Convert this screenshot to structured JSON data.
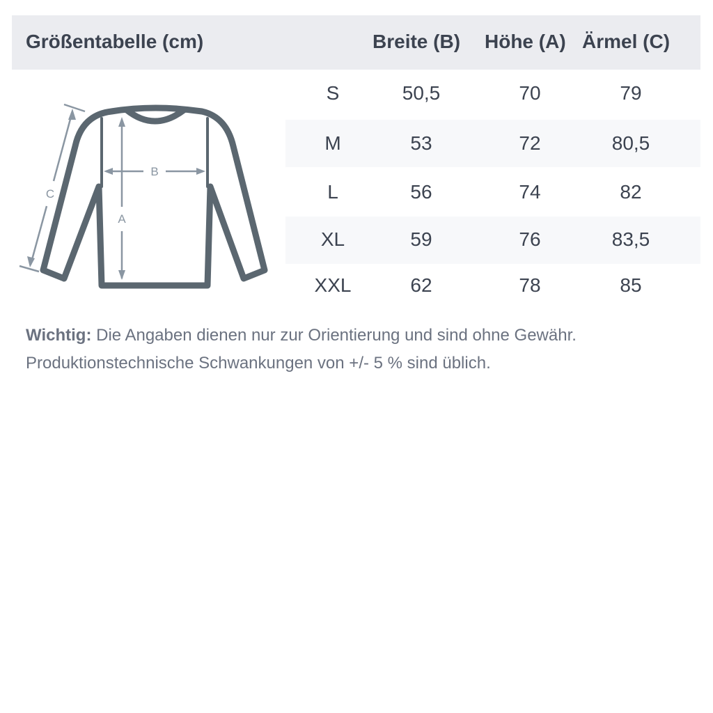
{
  "header": {
    "title": "Größentabelle (cm)",
    "columns": [
      "Breite (B)",
      "Höhe (A)",
      "Ärmel (C)"
    ]
  },
  "rows": [
    {
      "size": "S",
      "breite": "50,5",
      "hoehe": "70",
      "aermel": "79"
    },
    {
      "size": "M",
      "breite": "53",
      "hoehe": "72",
      "aermel": "80,5"
    },
    {
      "size": "L",
      "breite": "56",
      "hoehe": "74",
      "aermel": "82"
    },
    {
      "size": "XL",
      "breite": "59",
      "hoehe": "76",
      "aermel": "83,5"
    },
    {
      "size": "XXL",
      "breite": "62",
      "hoehe": "78",
      "aermel": "85"
    }
  ],
  "diagram": {
    "labels": {
      "a": "A",
      "b": "B",
      "c": "C"
    }
  },
  "note": {
    "bold": "Wichtig:",
    "line1": " Die Angaben dienen nur zur Orientierung und sind ohne Gewähr.",
    "line2": "Produktionstechnische Schwankungen von +/- 5 % sind üblich."
  },
  "colors": {
    "header_bg": "#ebecf0",
    "stripe_bg": "#f7f8fa",
    "text": "#3c4350",
    "outline": "#5b6770",
    "measure": "#8a96a2"
  }
}
